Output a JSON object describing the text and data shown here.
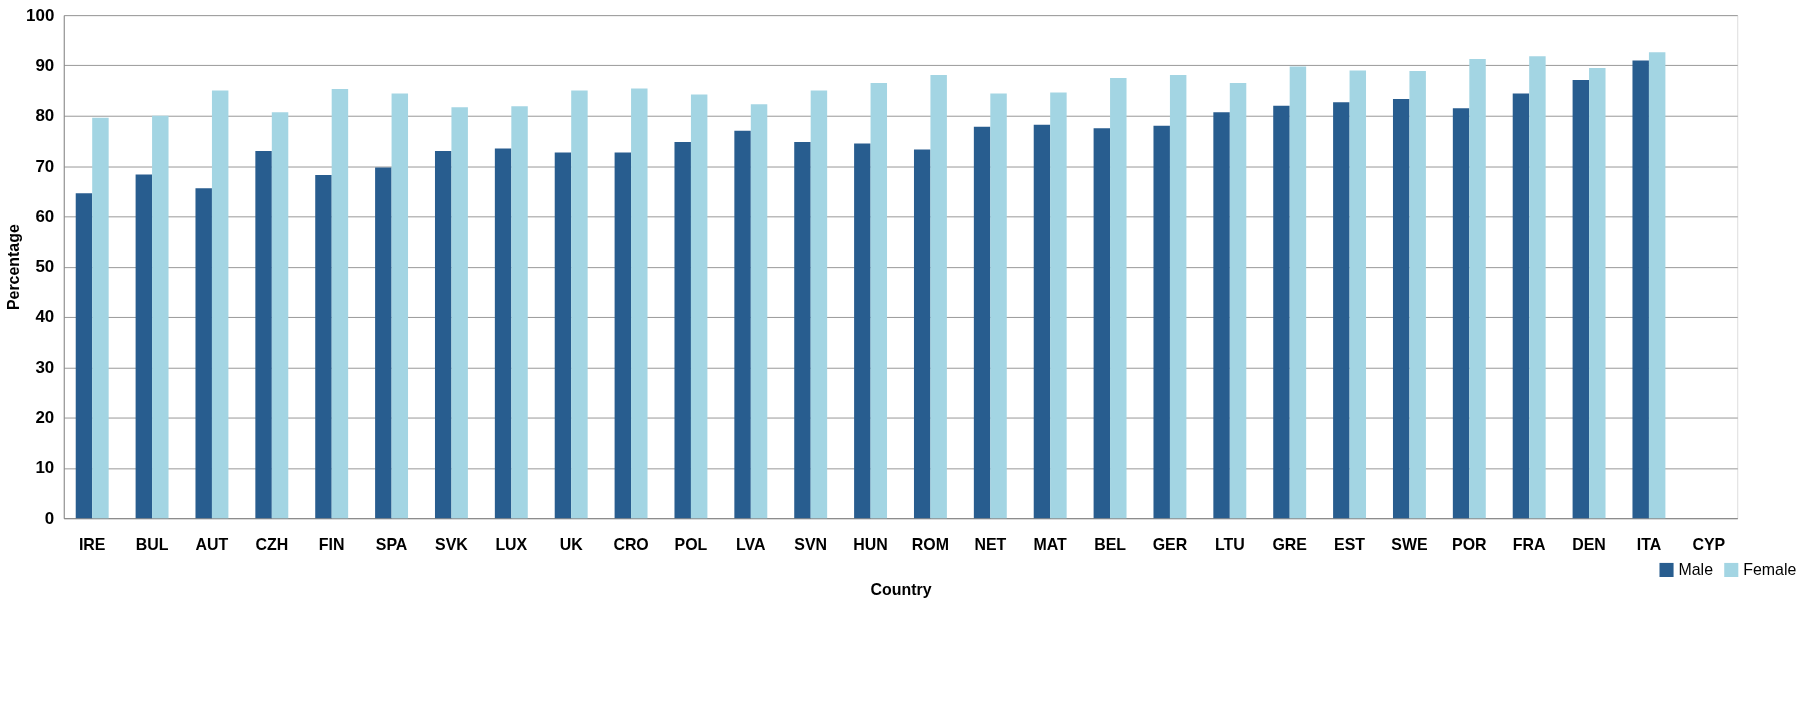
{
  "chart_data": {
    "type": "bar",
    "xlabel": "Country",
    "ylabel": "Percentage",
    "categories": [
      "IRE",
      "BUL",
      "AUT",
      "CZH",
      "FIN",
      "SPA",
      "SVK",
      "LUX",
      "UK",
      "CRO",
      "POL",
      "LVA",
      "SVN",
      "HUN",
      "ROM",
      "NET",
      "MAT",
      "BEL",
      "GER",
      "LTU",
      "GRE",
      "EST",
      "SWE",
      "POR",
      "FRA",
      "DEN",
      "ITA",
      "CYP"
    ],
    "series": [
      {
        "name": "Male",
        "color": "#285d8f",
        "values": [
          64.6,
          68.3,
          65.6,
          73.0,
          68.2,
          69.7,
          73.0,
          73.5,
          72.7,
          72.7,
          74.8,
          77.0,
          74.8,
          74.5,
          73.3,
          77.8,
          78.2,
          77.5,
          78.0,
          80.7,
          82.0,
          82.7,
          83.3,
          81.5,
          84.4,
          87.1,
          91.0,
          null
        ]
      },
      {
        "name": "Female",
        "color": "#a3d5e3",
        "values": [
          79.6,
          80.0,
          85.0,
          80.7,
          85.3,
          84.4,
          81.7,
          81.9,
          85.0,
          85.4,
          84.2,
          82.3,
          85.0,
          86.5,
          88.1,
          84.4,
          84.6,
          87.5,
          88.1,
          86.5,
          89.8,
          89.0,
          88.9,
          91.3,
          91.8,
          89.5,
          92.6,
          null
        ]
      }
    ],
    "ylim": [
      0,
      100
    ],
    "yticks": [
      0,
      10,
      20,
      30,
      40,
      50,
      60,
      70,
      80,
      90,
      100
    ],
    "grid": "y",
    "legend": "bottom right"
  }
}
